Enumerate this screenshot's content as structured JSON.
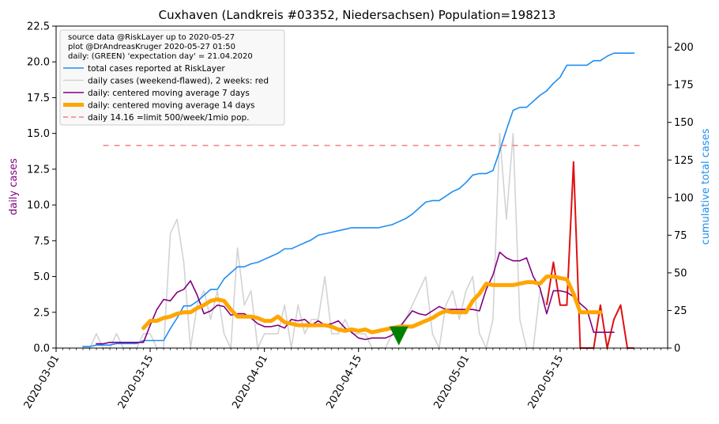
{
  "chart_data": {
    "type": "line",
    "title": "Cuxhaven (Landkreis #03352, Niedersachsen) Population=198213",
    "ylabel": "daily cases",
    "ylabel_right": "cumulative total cases",
    "ylim": [
      0,
      22.5
    ],
    "ylim_right": [
      0,
      214
    ],
    "y_ticks": [
      0.0,
      2.5,
      5.0,
      7.5,
      10.0,
      12.5,
      15.0,
      17.5,
      20.0,
      22.5
    ],
    "y_tick_labels": [
      "0.0",
      "2.5",
      "5.0",
      "7.5",
      "10.0",
      "12.5",
      "15.0",
      "17.5",
      "20.0",
      "22.5"
    ],
    "y_ticks_right": [
      0,
      25,
      50,
      75,
      100,
      125,
      150,
      175,
      200
    ],
    "y_tick_labels_right": [
      "0",
      "25",
      "50",
      "75",
      "100",
      "125",
      "150",
      "175",
      "200"
    ],
    "x_range": [
      "2020-03-01",
      "2020-05-31"
    ],
    "x_ticks": [
      "2020-03-01",
      "2020-03-15",
      "2020-04-01",
      "2020-04-15",
      "2020-05-01",
      "2020-05-15"
    ],
    "grid": false,
    "legend_position": "top-left",
    "legend_header": [
      "source data @RiskLayer up to 2020-05-27",
      "plot @DrAndreasKruger 2020-05-27 01:50",
      "daily: (GREEN) 'expectation day' = 21.04.2020"
    ],
    "series": [
      {
        "name": "total cases reported at RiskLayer",
        "color": "#1f8ef1",
        "axis": "right",
        "x": [
          "2020-03-05",
          "2020-03-06",
          "2020-03-07",
          "2020-03-08",
          "2020-03-09",
          "2020-03-10",
          "2020-03-11",
          "2020-03-12",
          "2020-03-13",
          "2020-03-14",
          "2020-03-15",
          "2020-03-16",
          "2020-03-17",
          "2020-03-18",
          "2020-03-19",
          "2020-03-20",
          "2020-03-21",
          "2020-03-22",
          "2020-03-23",
          "2020-03-24",
          "2020-03-25",
          "2020-03-26",
          "2020-03-27",
          "2020-03-28",
          "2020-03-29",
          "2020-03-30",
          "2020-03-31",
          "2020-04-01",
          "2020-04-02",
          "2020-04-03",
          "2020-04-04",
          "2020-04-05",
          "2020-04-06",
          "2020-04-07",
          "2020-04-08",
          "2020-04-09",
          "2020-04-10",
          "2020-04-11",
          "2020-04-12",
          "2020-04-13",
          "2020-04-14",
          "2020-04-15",
          "2020-04-16",
          "2020-04-17",
          "2020-04-18",
          "2020-04-19",
          "2020-04-20",
          "2020-04-21",
          "2020-04-22",
          "2020-04-23",
          "2020-04-24",
          "2020-04-25",
          "2020-04-26",
          "2020-04-27",
          "2020-04-28",
          "2020-04-29",
          "2020-04-30",
          "2020-05-01",
          "2020-05-02",
          "2020-05-03",
          "2020-05-04",
          "2020-05-05",
          "2020-05-06",
          "2020-05-07",
          "2020-05-08",
          "2020-05-09",
          "2020-05-10",
          "2020-05-11",
          "2020-05-12",
          "2020-05-13",
          "2020-05-14",
          "2020-05-15",
          "2020-05-16",
          "2020-05-17",
          "2020-05-18",
          "2020-05-19",
          "2020-05-20",
          "2020-05-21",
          "2020-05-22",
          "2020-05-23",
          "2020-05-24",
          "2020-05-25",
          "2020-05-26"
        ],
        "values": [
          1,
          1,
          2,
          2,
          2,
          3,
          3,
          3,
          3,
          5,
          5,
          5,
          5,
          13,
          20,
          28,
          28,
          31,
          35,
          39,
          39,
          46,
          50,
          54,
          54,
          56,
          57,
          59,
          61,
          63,
          66,
          66,
          68,
          70,
          72,
          75,
          76,
          77,
          78,
          79,
          80,
          80,
          80,
          80,
          80,
          81,
          82,
          84,
          86,
          89,
          93,
          97,
          98,
          98,
          101,
          104,
          106,
          110,
          115,
          116,
          116,
          118,
          131,
          145,
          158,
          160,
          160,
          164,
          168,
          171,
          176,
          180,
          188,
          188,
          188,
          188,
          191,
          191,
          194,
          196,
          196,
          196,
          196
        ]
      },
      {
        "name": "daily cases (weekend-flawed), 2 weeks: red",
        "color": "#d3d3d3",
        "color_last_two_weeks": "#e01010",
        "axis": "left",
        "x": [
          "2020-03-05",
          "2020-03-06",
          "2020-03-07",
          "2020-03-08",
          "2020-03-09",
          "2020-03-10",
          "2020-03-11",
          "2020-03-12",
          "2020-03-13",
          "2020-03-14",
          "2020-03-15",
          "2020-03-16",
          "2020-03-17",
          "2020-03-18",
          "2020-03-19",
          "2020-03-20",
          "2020-03-21",
          "2020-03-22",
          "2020-03-23",
          "2020-03-24",
          "2020-03-25",
          "2020-03-26",
          "2020-03-27",
          "2020-03-28",
          "2020-03-29",
          "2020-03-30",
          "2020-03-31",
          "2020-04-01",
          "2020-04-02",
          "2020-04-03",
          "2020-04-04",
          "2020-04-05",
          "2020-04-06",
          "2020-04-07",
          "2020-04-08",
          "2020-04-09",
          "2020-04-10",
          "2020-04-11",
          "2020-04-12",
          "2020-04-13",
          "2020-04-14",
          "2020-04-15",
          "2020-04-16",
          "2020-04-17",
          "2020-04-18",
          "2020-04-19",
          "2020-04-20",
          "2020-04-21",
          "2020-04-22",
          "2020-04-23",
          "2020-04-24",
          "2020-04-25",
          "2020-04-26",
          "2020-04-27",
          "2020-04-28",
          "2020-04-29",
          "2020-04-30",
          "2020-05-01",
          "2020-05-02",
          "2020-05-03",
          "2020-05-04",
          "2020-05-05",
          "2020-05-06",
          "2020-05-07",
          "2020-05-08",
          "2020-05-09",
          "2020-05-10",
          "2020-05-11",
          "2020-05-12",
          "2020-05-13",
          "2020-05-14",
          "2020-05-15",
          "2020-05-16",
          "2020-05-17",
          "2020-05-18",
          "2020-05-19",
          "2020-05-20",
          "2020-05-21",
          "2020-05-22",
          "2020-05-23",
          "2020-05-24",
          "2020-05-25",
          "2020-05-26"
        ],
        "values": [
          0,
          0,
          1,
          0,
          0,
          1,
          0,
          0,
          0,
          1,
          1,
          0,
          0,
          8,
          9,
          6,
          0,
          3,
          4,
          2,
          4,
          1,
          0,
          7,
          3,
          4,
          0,
          1,
          1,
          1,
          3,
          0,
          3,
          1,
          2,
          2,
          5,
          1,
          1,
          2,
          1,
          1,
          1,
          0,
          0,
          0,
          1,
          1,
          2,
          3,
          4,
          5,
          1,
          0,
          3,
          4,
          2,
          4,
          5,
          1,
          0,
          2,
          15,
          9,
          15,
          2,
          0,
          0,
          4,
          3,
          6,
          3,
          3,
          13,
          0,
          0,
          0,
          3,
          0,
          2,
          3,
          0,
          0
        ]
      },
      {
        "name": "daily: centered moving average 7 days",
        "color": "#800080",
        "axis": "left",
        "x": [
          "2020-03-07",
          "2020-03-08",
          "2020-03-09",
          "2020-03-10",
          "2020-03-11",
          "2020-03-12",
          "2020-03-13",
          "2020-03-14",
          "2020-03-15",
          "2020-03-16",
          "2020-03-17",
          "2020-03-18",
          "2020-03-19",
          "2020-03-20",
          "2020-03-21",
          "2020-03-22",
          "2020-03-23",
          "2020-03-24",
          "2020-03-25",
          "2020-03-26",
          "2020-03-27",
          "2020-03-28",
          "2020-03-29",
          "2020-03-30",
          "2020-03-31",
          "2020-04-01",
          "2020-04-02",
          "2020-04-03",
          "2020-04-04",
          "2020-04-05",
          "2020-04-06",
          "2020-04-07",
          "2020-04-08",
          "2020-04-09",
          "2020-04-10",
          "2020-04-11",
          "2020-04-12",
          "2020-04-13",
          "2020-04-14",
          "2020-04-15",
          "2020-04-16",
          "2020-04-17",
          "2020-04-18",
          "2020-04-19",
          "2020-04-20",
          "2020-04-21",
          "2020-04-22",
          "2020-04-23",
          "2020-04-24",
          "2020-04-25",
          "2020-04-26",
          "2020-04-27",
          "2020-04-28",
          "2020-04-29",
          "2020-04-30",
          "2020-05-01",
          "2020-05-02",
          "2020-05-03",
          "2020-05-04",
          "2020-05-05",
          "2020-05-06",
          "2020-05-07",
          "2020-05-08",
          "2020-05-09",
          "2020-05-10",
          "2020-05-11",
          "2020-05-12",
          "2020-05-13",
          "2020-05-14",
          "2020-05-15",
          "2020-05-16",
          "2020-05-17",
          "2020-05-18",
          "2020-05-19",
          "2020-05-20",
          "2020-05-21",
          "2020-05-22",
          "2020-05-23"
        ],
        "values": [
          0.3,
          0.3,
          0.4,
          0.4,
          0.4,
          0.4,
          0.4,
          0.4,
          1.6,
          2.7,
          3.4,
          3.3,
          3.9,
          4.1,
          4.7,
          3.7,
          2.4,
          2.6,
          3.0,
          2.9,
          2.3,
          2.4,
          2.4,
          2.1,
          1.7,
          1.5,
          1.5,
          1.6,
          1.4,
          2.0,
          1.9,
          2.0,
          1.6,
          1.9,
          1.6,
          1.7,
          1.9,
          1.4,
          1.1,
          0.7,
          0.6,
          0.7,
          0.7,
          0.7,
          0.9,
          1.4,
          2.0,
          2.6,
          2.4,
          2.3,
          2.6,
          2.9,
          2.7,
          2.7,
          2.7,
          2.7,
          2.7,
          2.6,
          4.1,
          5.1,
          6.7,
          6.3,
          6.1,
          6.1,
          6.3,
          5.0,
          4.2,
          2.4,
          4.0,
          4.0,
          3.9,
          3.6,
          3.1,
          2.7,
          1.1,
          1.1,
          1.1,
          1.1
        ]
      },
      {
        "name": "daily: centered moving average 14 days",
        "color": "#ffa500",
        "axis": "left",
        "x": [
          "2020-03-14",
          "2020-03-15",
          "2020-03-16",
          "2020-03-17",
          "2020-03-18",
          "2020-03-19",
          "2020-03-20",
          "2020-03-21",
          "2020-03-22",
          "2020-03-23",
          "2020-03-24",
          "2020-03-25",
          "2020-03-26",
          "2020-03-27",
          "2020-03-28",
          "2020-03-29",
          "2020-03-30",
          "2020-03-31",
          "2020-04-01",
          "2020-04-02",
          "2020-04-03",
          "2020-04-04",
          "2020-04-05",
          "2020-04-06",
          "2020-04-07",
          "2020-04-08",
          "2020-04-09",
          "2020-04-10",
          "2020-04-11",
          "2020-04-12",
          "2020-04-13",
          "2020-04-14",
          "2020-04-15",
          "2020-04-16",
          "2020-04-17",
          "2020-04-18",
          "2020-04-19",
          "2020-04-20",
          "2020-04-21",
          "2020-04-22",
          "2020-04-23",
          "2020-04-24",
          "2020-04-25",
          "2020-04-26",
          "2020-04-27",
          "2020-04-28",
          "2020-04-29",
          "2020-04-30",
          "2020-05-01",
          "2020-05-02",
          "2020-05-03",
          "2020-05-04",
          "2020-05-05",
          "2020-05-06",
          "2020-05-07",
          "2020-05-08",
          "2020-05-09",
          "2020-05-10",
          "2020-05-11",
          "2020-05-12",
          "2020-05-13",
          "2020-05-14",
          "2020-05-15",
          "2020-05-16",
          "2020-05-17",
          "2020-05-18",
          "2020-05-19",
          "2020-05-20",
          "2020-05-21"
        ],
        "values": [
          1.4,
          1.9,
          1.9,
          2.1,
          2.2,
          2.4,
          2.5,
          2.5,
          2.8,
          3.0,
          3.3,
          3.4,
          3.3,
          2.7,
          2.2,
          2.2,
          2.2,
          2.1,
          1.9,
          1.9,
          2.2,
          1.8,
          1.7,
          1.6,
          1.6,
          1.6,
          1.6,
          1.6,
          1.5,
          1.3,
          1.2,
          1.3,
          1.2,
          1.3,
          1.1,
          1.2,
          1.3,
          1.4,
          1.5,
          1.5,
          1.5,
          1.7,
          1.9,
          2.1,
          2.4,
          2.6,
          2.5,
          2.5,
          2.5,
          3.3,
          3.8,
          4.5,
          4.4,
          4.4,
          4.4,
          4.4,
          4.5,
          4.6,
          4.6,
          4.5,
          5.0,
          5.0,
          4.9,
          4.8,
          3.8,
          2.5,
          2.5,
          2.5,
          2.5
        ]
      },
      {
        "name": "daily 14.16 =limit 500/week/1mio pop.",
        "color": "#f08080",
        "axis": "left",
        "style": "dashed",
        "x": [
          "2020-03-08",
          "2020-05-27"
        ],
        "values": [
          14.16,
          14.16
        ]
      }
    ],
    "red_segment_x_start": "2020-05-13",
    "annotations": [
      {
        "type": "marker",
        "shape": "triangle-down",
        "color": "#008000",
        "x": "2020-04-21",
        "y": 0.85
      }
    ]
  }
}
